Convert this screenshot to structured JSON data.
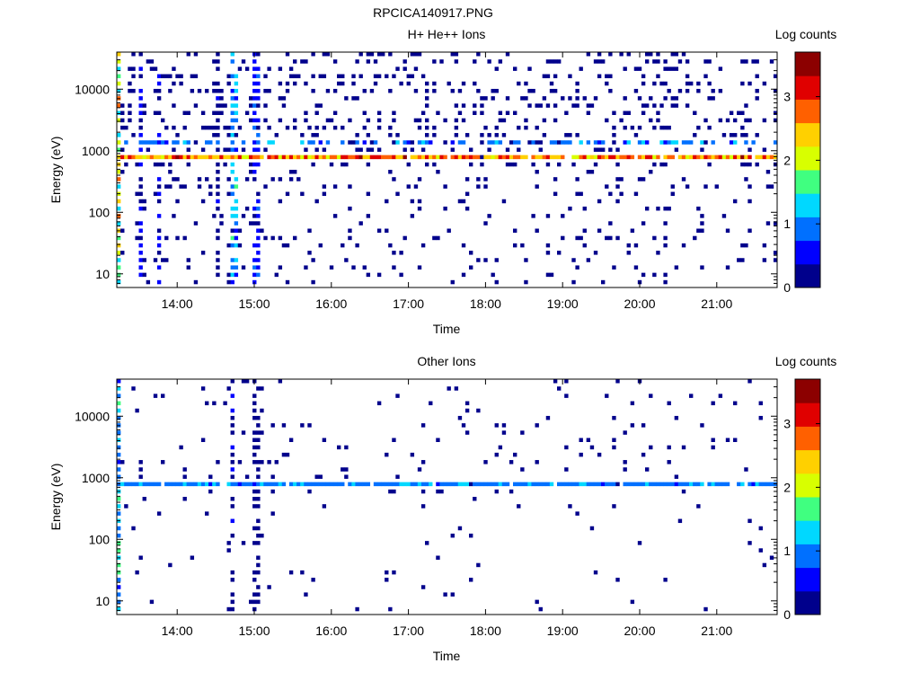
{
  "figure_title": "RPCICA140917.PNG",
  "colormap": [
    "#00008c",
    "#0000ff",
    "#0070ff",
    "#00d8ff",
    "#40ff80",
    "#d8ff00",
    "#ffd000",
    "#ff6000",
    "#e00000",
    "#8c0000"
  ],
  "chart_data": [
    {
      "type": "heatmap",
      "title": "H+ He++ Ions",
      "xlabel": "Time",
      "ylabel": "Energy (eV)",
      "colorbar_label": "Log counts",
      "colorbar_ticks": [
        "0",
        "1",
        "2",
        "3"
      ],
      "xlim": [
        "13:13",
        "21:47"
      ],
      "ylim": [
        6,
        40000
      ],
      "y_scale": "log",
      "x_ticks": [
        "14:00",
        "15:00",
        "16:00",
        "17:00",
        "18:00",
        "19:00",
        "20:00",
        "21:00"
      ],
      "y_ticks": [
        "10",
        "100",
        "1000",
        "10000"
      ],
      "clim": [
        0,
        3.7
      ],
      "features": {
        "line_energy_ev": 700,
        "line_level": 3.4,
        "secondary_line_energy_ev": 1400,
        "secondary_line_level": 1.3,
        "vertical_bands": [
          "13:14",
          "13:32",
          "13:46",
          "14:31",
          "14:44",
          "15:02"
        ],
        "vertical_band_levels": [
          2.8,
          0.6,
          0.5,
          0.4,
          1.5,
          0.9
        ],
        "background_density": 0.2
      }
    },
    {
      "type": "heatmap",
      "title": "Other Ions",
      "xlabel": "Time",
      "ylabel": "Energy (eV)",
      "colorbar_label": "Log counts",
      "colorbar_ticks": [
        "0",
        "1",
        "2",
        "3"
      ],
      "xlim": [
        "13:13",
        "21:47"
      ],
      "ylim": [
        6,
        40000
      ],
      "y_scale": "log",
      "x_ticks": [
        "14:00",
        "15:00",
        "16:00",
        "17:00",
        "18:00",
        "19:00",
        "20:00",
        "21:00"
      ],
      "y_ticks": [
        "10",
        "100",
        "1000",
        "10000"
      ],
      "clim": [
        0,
        3.7
      ],
      "features": {
        "line_energy_ev": 700,
        "line_level": 1.2,
        "secondary_line_energy_ev": 0,
        "secondary_line_level": 0,
        "vertical_bands": [
          "13:14",
          "14:43",
          "15:02"
        ],
        "vertical_band_levels": [
          1.6,
          0.5,
          0.3
        ],
        "background_density": 0.05
      }
    }
  ]
}
